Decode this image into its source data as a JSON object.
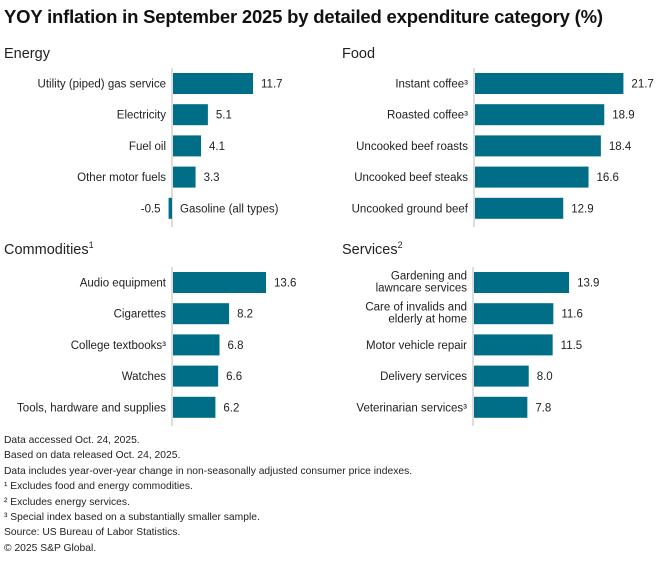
{
  "title": "YOY inflation in September 2025 by detailed expenditure category (%)",
  "colors": {
    "bar": "#006E87",
    "axis": "#BBBBBB"
  },
  "chart_data": [
    {
      "type": "bar",
      "orientation": "horizontal",
      "title": "Energy",
      "title_sup": "",
      "categories": [
        "Utility (piped) gas service",
        "Electricity",
        "Fuel oil",
        "Other motor fuels",
        "Gasoline (all types)"
      ],
      "values": [
        11.7,
        5.1,
        4.1,
        3.3,
        -0.5
      ],
      "value_labels": [
        "11.7",
        "5.1",
        "4.1",
        "3.3",
        "-0.5"
      ],
      "xlim": [
        -3,
        22.5
      ],
      "grid": false
    },
    {
      "type": "bar",
      "orientation": "horizontal",
      "title": "Food",
      "title_sup": "",
      "categories": [
        "Instant coffee³",
        "Roasted coffee³",
        "Uncooked beef roasts",
        "Uncooked beef steaks",
        "Uncooked ground beef"
      ],
      "values": [
        21.7,
        18.9,
        18.4,
        16.6,
        12.9
      ],
      "value_labels": [
        "21.7",
        "18.9",
        "18.4",
        "16.6",
        "12.9"
      ],
      "xlim": [
        0,
        22.5
      ],
      "grid": false
    },
    {
      "type": "bar",
      "orientation": "horizontal",
      "title": "Commodities",
      "title_sup": "1",
      "categories": [
        "Audio equipment",
        "Cigarettes",
        "College textbooks³",
        "Watches",
        "Tools, hardware and supplies"
      ],
      "values": [
        13.6,
        8.2,
        6.8,
        6.6,
        6.2
      ],
      "value_labels": [
        "13.6",
        "8.2",
        "6.8",
        "6.6",
        "6.2"
      ],
      "xlim": [
        0,
        22.5
      ],
      "grid": false
    },
    {
      "type": "bar",
      "orientation": "horizontal",
      "title": "Services",
      "title_sup": "2",
      "categories": [
        "Gardening and|lawncare services",
        "Care of invalids and|elderly at home",
        "Motor vehicle repair",
        "Delivery services",
        "Veterinarian services³"
      ],
      "values": [
        13.9,
        11.6,
        11.5,
        8.0,
        7.8
      ],
      "value_labels": [
        "13.9",
        "11.6",
        "11.5",
        "8.0",
        "7.8"
      ],
      "xlim": [
        0,
        22.5
      ],
      "grid": false
    }
  ],
  "footer": [
    "Data accessed Oct. 24, 2025.",
    "Based on data released Oct. 24, 2025.",
    "Data includes year-over-year change in non-seasonally adjusted consumer price indexes.",
    "¹ Excludes food and energy commodities.",
    "² Excludes energy services.",
    "³ Special index based on a substantially smaller sample.",
    "Source: US Bureau of Labor Statistics.",
    "© 2025 S&P Global."
  ]
}
